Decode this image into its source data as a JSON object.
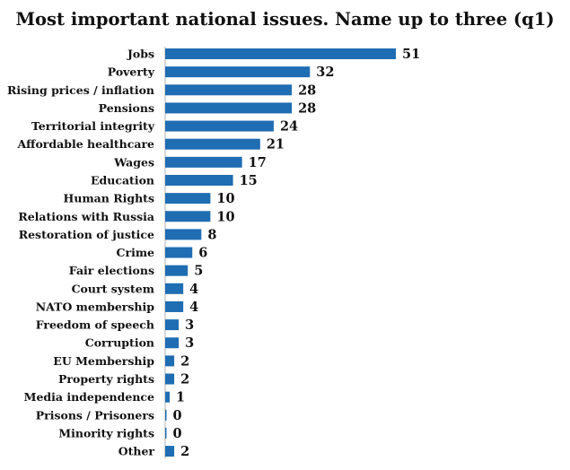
{
  "chart_data": {
    "type": "bar",
    "orientation": "horizontal",
    "title": "Most important national issues. Name up to three (q1)",
    "categories": [
      "Jobs",
      "Poverty",
      "Rising prices / inflation",
      "Pensions",
      "Territorial integrity",
      "Affordable healthcare",
      "Wages",
      "Education",
      "Human Rights",
      "Relations with Russia",
      "Restoration of justice",
      "Crime",
      "Fair elections",
      "Court system",
      "NATO membership",
      "Freedom of speech",
      "Corruption",
      "EU Membership",
      "Property rights",
      "Media independence",
      "Prisons / Prisoners",
      "Minority rights",
      "Other"
    ],
    "values": [
      51,
      32,
      28,
      28,
      24,
      21,
      17,
      15,
      10,
      10,
      8,
      6,
      5,
      4,
      4,
      3,
      3,
      2,
      2,
      1,
      0,
      0,
      2
    ],
    "value_labels": [
      "51",
      "32",
      "28",
      "28",
      "24",
      "21",
      "17",
      "15",
      "10",
      "10",
      "8",
      "6",
      "5",
      "4",
      "4",
      "3",
      "3",
      "2",
      "2",
      "1",
      "0",
      "0",
      "2"
    ],
    "xlabel": "",
    "ylabel": "",
    "xlim": [
      0,
      51
    ],
    "grid": false,
    "legend": "none",
    "bar_color": "#1f6db3"
  }
}
